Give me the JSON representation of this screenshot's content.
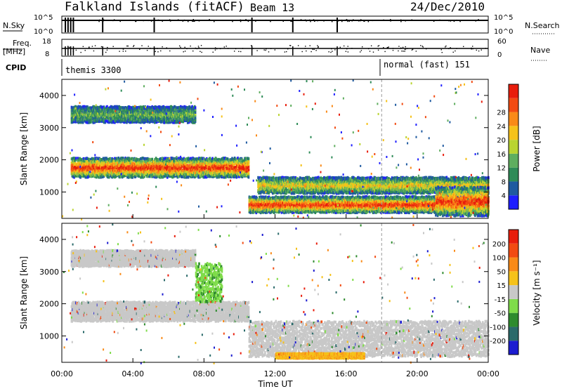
{
  "header": {
    "station": "Falkland Islands (fitACF)",
    "beam": "Beam 13",
    "date": "24/Dec/2010"
  },
  "summary_panels": {
    "nsky_label": "N.Sky",
    "nsky_ticks": [
      "10^5",
      "10^0"
    ],
    "nsearch_label": "N.Search",
    "nsearch_ticks": [
      "10^5",
      "10^0"
    ],
    "freq_label_1": "Freq.",
    "freq_label_2": "[MHz]",
    "freq_ticks": [
      "18",
      "8"
    ],
    "nave_label": "Nave",
    "nave_ticks": [
      "60",
      "0"
    ],
    "cpid_label": "CPID",
    "cpid_modes": [
      {
        "label": "themis 3300",
        "start_hour": 0.2
      },
      {
        "label": "normal (fast) 151",
        "start_hour": 18.0
      }
    ]
  },
  "chart_data": [
    {
      "type": "heatmap",
      "name": "power",
      "ylabel": "Slant Range [km]",
      "xlabel": "Time UT",
      "ylim": [
        180,
        4500
      ],
      "xlim": [
        0,
        24
      ],
      "yticks": [
        "1000",
        "2000",
        "3000",
        "4000"
      ],
      "xticks": [
        "00:00",
        "04:00",
        "08:00",
        "12:00",
        "16:00",
        "20:00",
        "00:00"
      ],
      "colorbar": {
        "label": "Power [dB]",
        "ticks": [
          "4",
          "8",
          "12",
          "16",
          "20",
          "24",
          "28"
        ],
        "colors": [
          "#1e1eff",
          "#1f5aa0",
          "#2e8b57",
          "#5fae5f",
          "#b9d431",
          "#f6c21a",
          "#f98a18",
          "#f24b12",
          "#e81d0c"
        ]
      },
      "echo_bands": [
        {
          "t": [
            0.5,
            10.5
          ],
          "range": [
            1500,
            2100
          ],
          "level": "high"
        },
        {
          "t": [
            0.5,
            7.5
          ],
          "range": [
            3200,
            3700
          ],
          "level": "low"
        },
        {
          "t": [
            10.5,
            24
          ],
          "range": [
            400,
            900
          ],
          "level": "high"
        },
        {
          "t": [
            11,
            24
          ],
          "range": [
            1000,
            1500
          ],
          "level": "medium"
        },
        {
          "t": [
            21,
            24
          ],
          "range": [
            300,
            1200
          ],
          "level": "high"
        }
      ]
    },
    {
      "type": "heatmap",
      "name": "velocity",
      "ylabel": "Slant Range [km]",
      "xlabel": "Time UT",
      "ylim": [
        180,
        4500
      ],
      "xlim": [
        0,
        24
      ],
      "yticks": [
        "1000",
        "2000",
        "3000",
        "4000"
      ],
      "xticks": [
        "00:00",
        "04:00",
        "08:00",
        "12:00",
        "16:00",
        "20:00",
        "00:00"
      ],
      "colorbar": {
        "label": "Velocity [m s⁻¹]",
        "ticks": [
          "200",
          "100",
          "50",
          "15",
          "-15",
          "-50",
          "-100",
          "-200"
        ],
        "colors": [
          "#1c1cd0",
          "#2a6a6a",
          "#2e8b2e",
          "#7fdc4a",
          "#c8c8c8",
          "#f6c21a",
          "#f98a18",
          "#f24b12",
          "#e81d0c"
        ]
      },
      "echo_bands": [
        {
          "t": [
            0.5,
            10.5
          ],
          "range": [
            1500,
            2100
          ],
          "level": "ground"
        },
        {
          "t": [
            0.5,
            7.5
          ],
          "range": [
            3200,
            3700
          ],
          "level": "ground"
        },
        {
          "t": [
            7.5,
            9.0
          ],
          "range": [
            2100,
            3300
          ],
          "level": "positive"
        },
        {
          "t": [
            10.5,
            24
          ],
          "range": [
            400,
            1500
          ],
          "level": "ground"
        },
        {
          "t": [
            12.0,
            17.0
          ],
          "range": [
            350,
            500
          ],
          "level": "negative"
        }
      ]
    }
  ]
}
